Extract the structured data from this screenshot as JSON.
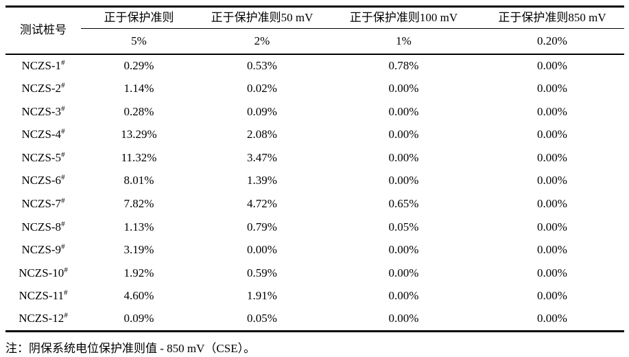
{
  "page": {
    "background_color": "#ffffff",
    "text_color": "#000000"
  },
  "table": {
    "station_column_header": "测试桩号",
    "criteria_headers": [
      {
        "label": "正于保护准则",
        "threshold": "5%"
      },
      {
        "label": "正于保护准则50 mV",
        "threshold": "2%"
      },
      {
        "label": "正于保护准则100 mV",
        "threshold": "1%"
      },
      {
        "label": "正于保护准则850 mV",
        "threshold": "0.20%"
      }
    ],
    "rows": [
      {
        "station": "NCZS-1",
        "marker": "#",
        "values": [
          "0.29%",
          "0.53%",
          "0.78%",
          "0.00%"
        ]
      },
      {
        "station": "NCZS-2",
        "marker": "#",
        "values": [
          "1.14%",
          "0.02%",
          "0.00%",
          "0.00%"
        ]
      },
      {
        "station": "NCZS-3",
        "marker": "#",
        "values": [
          "0.28%",
          "0.09%",
          "0.00%",
          "0.00%"
        ]
      },
      {
        "station": "NCZS-4",
        "marker": "#",
        "values": [
          "13.29%",
          "2.08%",
          "0.00%",
          "0.00%"
        ]
      },
      {
        "station": "NCZS-5",
        "marker": "#",
        "values": [
          "11.32%",
          "3.47%",
          "0.00%",
          "0.00%"
        ]
      },
      {
        "station": "NCZS-6",
        "marker": "#",
        "values": [
          "8.01%",
          "1.39%",
          "0.00%",
          "0.00%"
        ]
      },
      {
        "station": "NCZS-7",
        "marker": "#",
        "values": [
          "7.82%",
          "4.72%",
          "0.65%",
          "0.00%"
        ]
      },
      {
        "station": "NCZS-8",
        "marker": "#",
        "values": [
          "1.13%",
          "0.79%",
          "0.05%",
          "0.00%"
        ]
      },
      {
        "station": "NCZS-9",
        "marker": "#",
        "values": [
          "3.19%",
          "0.00%",
          "0.00%",
          "0.00%"
        ]
      },
      {
        "station": "NCZS-10",
        "marker": "#",
        "values": [
          "1.92%",
          "0.59%",
          "0.00%",
          "0.00%"
        ]
      },
      {
        "station": "NCZS-11",
        "marker": "#",
        "values": [
          "4.60%",
          "1.91%",
          "0.00%",
          "0.00%"
        ]
      },
      {
        "station": "NCZS-12",
        "marker": "#",
        "values": [
          "0.09%",
          "0.05%",
          "0.00%",
          "0.00%"
        ]
      }
    ],
    "footnote": "注：阴保系统电位保护准则值 - 850 mV（CSE）。"
  },
  "chart_data": {
    "type": "table",
    "columns": [
      "测试桩号",
      "正于保护准则",
      "正于保护准则50 mV",
      "正于保护准则100 mV",
      "正于保护准则850 mV"
    ],
    "threshold_row": [
      "",
      "5%",
      "2%",
      "1%",
      "0.20%"
    ],
    "rows": [
      [
        "NCZS-1#",
        "0.29%",
        "0.53%",
        "0.78%",
        "0.00%"
      ],
      [
        "NCZS-2#",
        "1.14%",
        "0.02%",
        "0.00%",
        "0.00%"
      ],
      [
        "NCZS-3#",
        "0.28%",
        "0.09%",
        "0.00%",
        "0.00%"
      ],
      [
        "NCZS-4#",
        "13.29%",
        "2.08%",
        "0.00%",
        "0.00%"
      ],
      [
        "NCZS-5#",
        "11.32%",
        "3.47%",
        "0.00%",
        "0.00%"
      ],
      [
        "NCZS-6#",
        "8.01%",
        "1.39%",
        "0.00%",
        "0.00%"
      ],
      [
        "NCZS-7#",
        "7.82%",
        "4.72%",
        "0.65%",
        "0.00%"
      ],
      [
        "NCZS-8#",
        "1.13%",
        "0.79%",
        "0.05%",
        "0.00%"
      ],
      [
        "NCZS-9#",
        "3.19%",
        "0.00%",
        "0.00%",
        "0.00%"
      ],
      [
        "NCZS-10#",
        "1.92%",
        "0.59%",
        "0.00%",
        "0.00%"
      ],
      [
        "NCZS-11#",
        "4.60%",
        "1.91%",
        "0.00%",
        "0.00%"
      ],
      [
        "NCZS-12#",
        "0.09%",
        "0.05%",
        "0.00%",
        "0.00%"
      ]
    ],
    "footnote": "注：阴保系统电位保护准则值 - 850 mV（CSE）。"
  }
}
